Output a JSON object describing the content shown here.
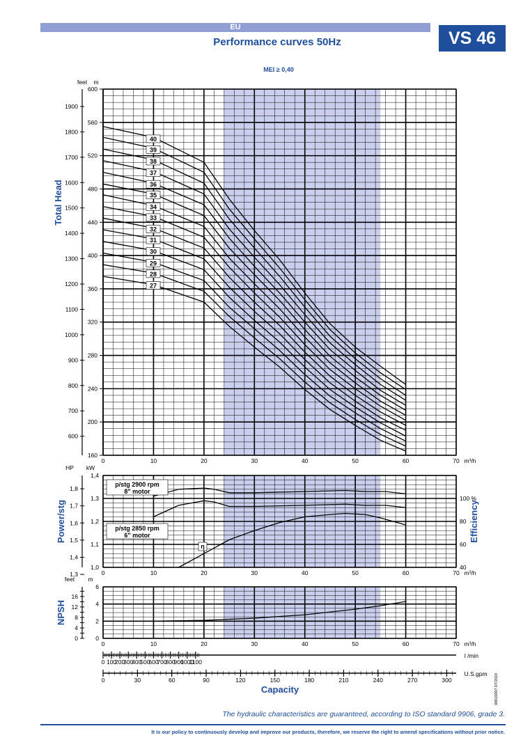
{
  "header": {
    "region": "EU",
    "title": "Performance curves 50Hz",
    "model": "VS 46",
    "mei": "MEI ≥ 0,40"
  },
  "footer": {
    "guarantee": "The hydraulic characteristics are guaranteed, according to ISO standard 9906, grade 3.",
    "policy": "It is our policy to continuously develop and improve our products, therefore, we reserve the right to amend specifications without prior notice.",
    "code": "00010007  07/2010"
  },
  "colors": {
    "brand": "#1f4e9c",
    "band": "#c9cfec",
    "grid": "#000000"
  },
  "chart_data": [
    {
      "type": "line",
      "id": "head",
      "ylabel": "Total Head",
      "unit_left": "feet",
      "unit_right": "m",
      "xlim": [
        0,
        70
      ],
      "ylim": [
        160,
        600
      ],
      "x_unit": "m³/h",
      "x_ticks": [
        0,
        10,
        20,
        30,
        40,
        50,
        60,
        70
      ],
      "y_ticks_m": [
        160,
        200,
        240,
        280,
        320,
        360,
        400,
        440,
        480,
        520,
        560,
        600
      ],
      "y_ticks_feet": [
        600,
        700,
        800,
        900,
        1000,
        1100,
        1200,
        1300,
        1400,
        1500,
        1600,
        1700,
        1800,
        1900
      ],
      "recommended_range": [
        24,
        55
      ],
      "series": [
        {
          "name": "40",
          "values": [
            [
              0,
              555
            ],
            [
              10,
              542
            ],
            [
              20,
              512
            ],
            [
              25,
              468
            ],
            [
              30,
              430
            ],
            [
              35,
              395
            ],
            [
              40,
              355
            ],
            [
              45,
              318
            ],
            [
              50,
              290
            ],
            [
              55,
              267
            ],
            [
              60,
              245
            ]
          ]
        },
        {
          "name": "39",
          "values": [
            [
              0,
              542
            ],
            [
              10,
              529
            ],
            [
              20,
              500
            ],
            [
              25,
              456
            ],
            [
              30,
              420
            ],
            [
              35,
              385
            ],
            [
              40,
              347
            ],
            [
              45,
              311
            ],
            [
              50,
              283
            ],
            [
              55,
              259
            ],
            [
              60,
              239
            ]
          ]
        },
        {
          "name": "38",
          "values": [
            [
              0,
              528
            ],
            [
              10,
              515
            ],
            [
              20,
              487
            ],
            [
              25,
              444
            ],
            [
              30,
              409
            ],
            [
              35,
              375
            ],
            [
              40,
              338
            ],
            [
              45,
              303
            ],
            [
              50,
              276
            ],
            [
              55,
              252
            ],
            [
              60,
              232
            ]
          ]
        },
        {
          "name": "37",
          "values": [
            [
              0,
              514
            ],
            [
              10,
              501
            ],
            [
              20,
              474
            ],
            [
              25,
              432
            ],
            [
              30,
              398
            ],
            [
              35,
              365
            ],
            [
              40,
              329
            ],
            [
              45,
              295
            ],
            [
              50,
              269
            ],
            [
              55,
              245
            ],
            [
              60,
              226
            ]
          ]
        },
        {
          "name": "36",
          "values": [
            [
              0,
              500
            ],
            [
              10,
              487
            ],
            [
              20,
              461
            ],
            [
              25,
              421
            ],
            [
              30,
              387
            ],
            [
              35,
              355
            ],
            [
              40,
              320
            ],
            [
              45,
              287
            ],
            [
              50,
              262
            ],
            [
              55,
              238
            ],
            [
              60,
              220
            ]
          ]
        },
        {
          "name": "35",
          "values": [
            [
              0,
              486
            ],
            [
              10,
              474
            ],
            [
              20,
              448
            ],
            [
              25,
              409
            ],
            [
              30,
              377
            ],
            [
              35,
              346
            ],
            [
              40,
              311
            ],
            [
              45,
              279
            ],
            [
              50,
              254
            ],
            [
              55,
              232
            ],
            [
              60,
              214
            ]
          ]
        },
        {
          "name": "34",
          "values": [
            [
              0,
              473
            ],
            [
              10,
              460
            ],
            [
              20,
              435
            ],
            [
              25,
              397
            ],
            [
              30,
              366
            ],
            [
              35,
              336
            ],
            [
              40,
              302
            ],
            [
              45,
              271
            ],
            [
              50,
              247
            ],
            [
              55,
              225
            ],
            [
              60,
              208
            ]
          ]
        },
        {
          "name": "33",
          "values": [
            [
              0,
              459
            ],
            [
              10,
              447
            ],
            [
              20,
              422
            ],
            [
              25,
              386
            ],
            [
              30,
              355
            ],
            [
              35,
              326
            ],
            [
              40,
              293
            ],
            [
              45,
              263
            ],
            [
              50,
              240
            ],
            [
              55,
              219
            ],
            [
              60,
              202
            ]
          ]
        },
        {
          "name": "32",
          "values": [
            [
              0,
              445
            ],
            [
              10,
              433
            ],
            [
              20,
              409
            ],
            [
              25,
              374
            ],
            [
              30,
              344
            ],
            [
              35,
              316
            ],
            [
              40,
              284
            ],
            [
              45,
              255
            ],
            [
              50,
              232
            ],
            [
              55,
              212
            ],
            [
              60,
              196
            ]
          ]
        },
        {
          "name": "31",
          "values": [
            [
              0,
              431
            ],
            [
              10,
              420
            ],
            [
              20,
              396
            ],
            [
              25,
              362
            ],
            [
              30,
              333
            ],
            [
              35,
              306
            ],
            [
              40,
              275
            ],
            [
              45,
              247
            ],
            [
              50,
              225
            ],
            [
              55,
              205
            ],
            [
              60,
              190
            ]
          ]
        },
        {
          "name": "30",
          "values": [
            [
              0,
              417
            ],
            [
              10,
              406
            ],
            [
              20,
              383
            ],
            [
              25,
              350
            ],
            [
              30,
              322
            ],
            [
              35,
              296
            ],
            [
              40,
              266
            ],
            [
              45,
              239
            ],
            [
              50,
              218
            ],
            [
              55,
              199
            ],
            [
              60,
              183
            ]
          ]
        },
        {
          "name": "29",
          "values": [
            [
              0,
              403
            ],
            [
              10,
              392
            ],
            [
              20,
              370
            ],
            [
              25,
              338
            ],
            [
              30,
              312
            ],
            [
              35,
              286
            ],
            [
              40,
              257
            ],
            [
              45,
              231
            ],
            [
              50,
              211
            ],
            [
              55,
              192
            ],
            [
              60,
              177
            ]
          ]
        },
        {
          "name": "28",
          "values": [
            [
              0,
              389
            ],
            [
              10,
              379
            ],
            [
              20,
              357
            ],
            [
              25,
              327
            ],
            [
              30,
              301
            ],
            [
              35,
              276
            ],
            [
              40,
              248
            ],
            [
              45,
              223
            ],
            [
              50,
              203
            ],
            [
              55,
              185
            ],
            [
              60,
              171
            ]
          ]
        },
        {
          "name": "27",
          "values": [
            [
              0,
              375
            ],
            [
              10,
              365
            ],
            [
              20,
              344
            ],
            [
              25,
              315
            ],
            [
              30,
              290
            ],
            [
              35,
              266
            ],
            [
              40,
              239
            ],
            [
              45,
              215
            ],
            [
              50,
              196
            ],
            [
              55,
              178
            ],
            [
              60,
              165
            ]
          ]
        }
      ]
    },
    {
      "type": "line",
      "id": "power",
      "ylabel": "Power/stg",
      "y2label": "Efficiency",
      "unit_left": "HP",
      "unit_right": "kW",
      "xlim": [
        0,
        70
      ],
      "ylim_kw": [
        1.0,
        1.4
      ],
      "y_ticks_kw": [
        "1,0",
        "1,1",
        "1,2",
        "1,3",
        "1,4"
      ],
      "y_ticks_hp": [
        "1,3",
        "1,4",
        "1,5",
        "1,6",
        "1,7",
        "1,8"
      ],
      "y2_ticks": [
        "40",
        "60",
        "80",
        "100 %"
      ],
      "ylim_eff": [
        40,
        120
      ],
      "annotations": [
        "p/stg 2900 rpm",
        "8\" motor",
        "p/stg 2850 rpm",
        "6\" motor",
        "η"
      ],
      "series": [
        {
          "name": "p/stg 2900 rpm",
          "values": [
            [
              10,
              1.31
            ],
            [
              15,
              1.34
            ],
            [
              20,
              1.345
            ],
            [
              22,
              1.34
            ],
            [
              25,
              1.325
            ],
            [
              30,
              1.325
            ],
            [
              40,
              1.33
            ],
            [
              48,
              1.335
            ],
            [
              52,
              1.33
            ],
            [
              56,
              1.33
            ],
            [
              60,
              1.32
            ]
          ]
        },
        {
          "name": "p/stg 2850 rpm",
          "values": [
            [
              10,
              1.22
            ],
            [
              15,
              1.27
            ],
            [
              20,
              1.29
            ],
            [
              22,
              1.285
            ],
            [
              25,
              1.265
            ],
            [
              30,
              1.265
            ],
            [
              40,
              1.27
            ],
            [
              48,
              1.275
            ],
            [
              52,
              1.27
            ],
            [
              56,
              1.27
            ],
            [
              60,
              1.26
            ]
          ]
        },
        {
          "name": "η",
          "values": [
            [
              15,
              40
            ],
            [
              20,
              52
            ],
            [
              25,
              64
            ],
            [
              30,
              72
            ],
            [
              35,
              79
            ],
            [
              40,
              84
            ],
            [
              45,
              86
            ],
            [
              48,
              87
            ],
            [
              52,
              86
            ],
            [
              55,
              83
            ],
            [
              60,
              77
            ]
          ]
        }
      ]
    },
    {
      "type": "line",
      "id": "npsh",
      "ylabel": "NPSH",
      "unit_left": "feet",
      "unit_right": "m",
      "xlim": [
        0,
        70
      ],
      "ylim": [
        0,
        6
      ],
      "y_ticks_m": [
        0,
        2,
        4,
        6
      ],
      "y_ticks_feet": [
        0,
        2,
        4,
        6,
        8,
        10,
        12,
        14,
        16,
        18
      ],
      "series": [
        {
          "name": "NPSH",
          "values": [
            [
              10,
              2.0
            ],
            [
              20,
              2.1
            ],
            [
              30,
              2.35
            ],
            [
              40,
              2.75
            ],
            [
              50,
              3.4
            ],
            [
              55,
              3.8
            ],
            [
              60,
              4.3
            ]
          ]
        }
      ]
    }
  ],
  "capacity": {
    "label": "Capacity",
    "lmin_unit": "l /min",
    "lmin_ticks": [
      0,
      100,
      200,
      300,
      400,
      500,
      600,
      700,
      800,
      900,
      1000,
      1100
    ],
    "gpm_unit": "U.S.gpm",
    "gpm_ticks": [
      0,
      30,
      60,
      90,
      120,
      150,
      180,
      210,
      240,
      270,
      300
    ]
  }
}
